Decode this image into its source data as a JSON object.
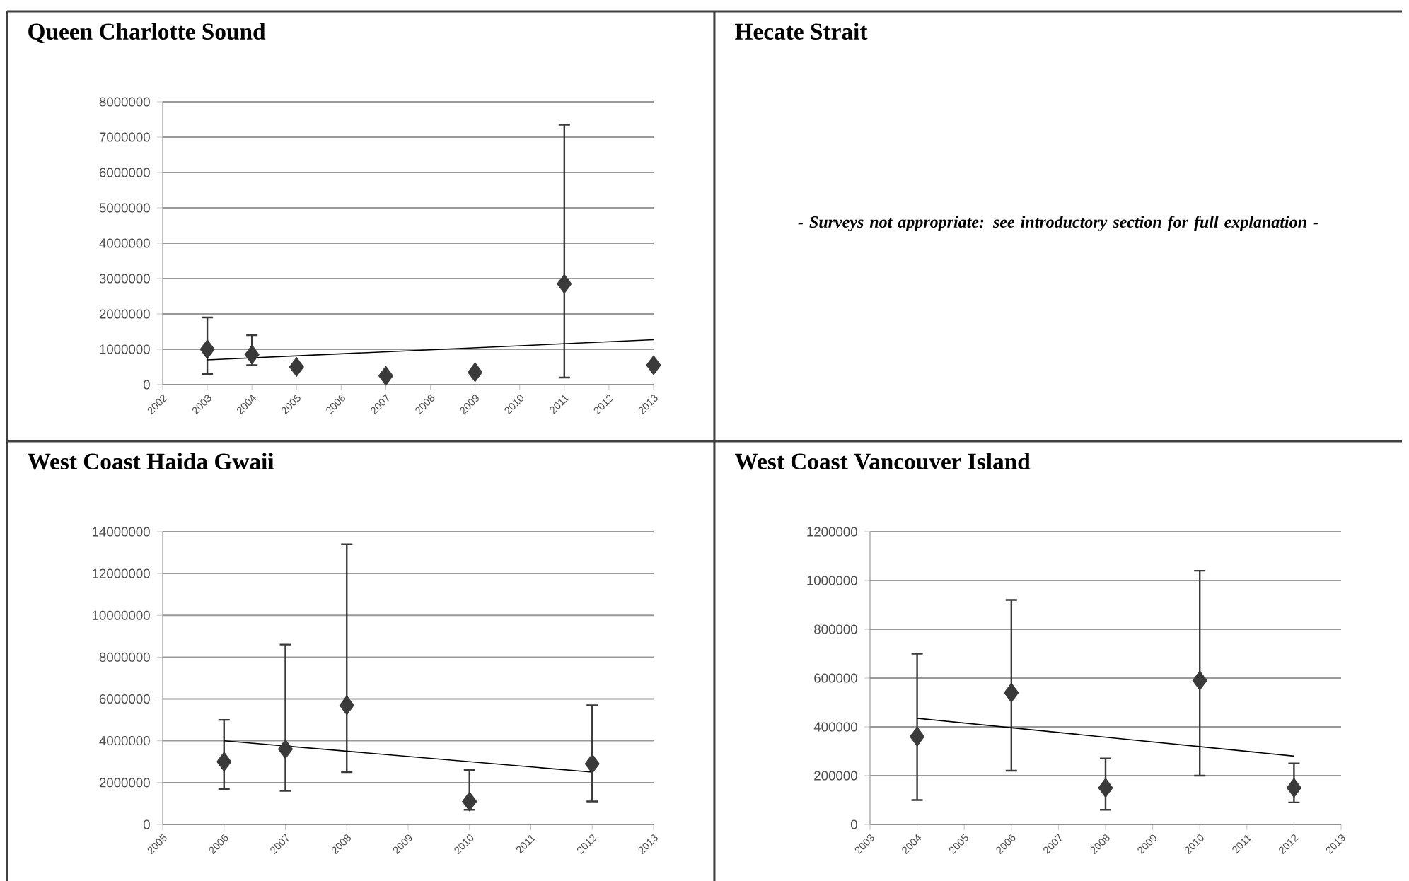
{
  "chart_data": [
    {
      "type": "scatter",
      "title": "Queen Charlotte Sound",
      "marker": "diamond",
      "grid": "y",
      "xlim": [
        2002,
        2013
      ],
      "xticks": [
        2002,
        2003,
        2004,
        2005,
        2006,
        2007,
        2008,
        2009,
        2010,
        2011,
        2012,
        2013
      ],
      "ylim": [
        0,
        8000000
      ],
      "yticks": [
        0,
        1000000,
        2000000,
        3000000,
        4000000,
        5000000,
        6000000,
        7000000,
        8000000
      ],
      "series": [
        {
          "type": "scatter",
          "color": "#3a3a3a",
          "x": [
            2003,
            2004,
            2005,
            2007,
            2009,
            2011,
            2013
          ],
          "values": [
            1000000,
            850000,
            500000,
            250000,
            350000,
            2850000,
            550000
          ],
          "errors": [
            [
              300000,
              1900000
            ],
            [
              550000,
              1400000
            ],
            null,
            null,
            null,
            [
              200000,
              7350000
            ],
            null
          ]
        },
        {
          "type": "line",
          "color": "#000000",
          "marker": "none",
          "x": [
            2003,
            2013
          ],
          "values": [
            700000,
            1270000
          ]
        }
      ]
    },
    {
      "type": "other",
      "title": "Hecate Strait",
      "annotations": [
        "- Surveys not appropriate: see introductory section for full explanation -"
      ]
    },
    {
      "type": "scatter",
      "title": "West Coast Haida Gwaii",
      "marker": "diamond",
      "grid": "y",
      "xlim": [
        2005,
        2013
      ],
      "xticks": [
        2005,
        2006,
        2007,
        2008,
        2009,
        2010,
        2011,
        2012,
        2013
      ],
      "ylim": [
        0,
        14000000
      ],
      "yticks": [
        0,
        2000000,
        4000000,
        6000000,
        8000000,
        10000000,
        12000000,
        14000000
      ],
      "series": [
        {
          "type": "scatter",
          "color": "#3a3a3a",
          "x": [
            2006,
            2007,
            2008,
            2010,
            2012
          ],
          "values": [
            3000000,
            3600000,
            5700000,
            1100000,
            2900000
          ],
          "errors": [
            [
              1700000,
              5000000
            ],
            [
              1600000,
              8600000
            ],
            [
              2500000,
              13400000
            ],
            [
              700000,
              2600000
            ],
            [
              1100000,
              5700000
            ]
          ]
        },
        {
          "type": "line",
          "color": "#000000",
          "marker": "none",
          "x": [
            2006,
            2012
          ],
          "values": [
            4000000,
            2500000
          ]
        }
      ]
    },
    {
      "type": "scatter",
      "title": "West Coast Vancouver Island",
      "marker": "diamond",
      "grid": "y",
      "xlim": [
        2003,
        2013
      ],
      "xticks": [
        2003,
        2004,
        2005,
        2006,
        2007,
        2008,
        2009,
        2010,
        2011,
        2012,
        2013
      ],
      "ylim": [
        0,
        1200000
      ],
      "yticks": [
        0,
        200000,
        400000,
        600000,
        800000,
        1000000,
        1200000
      ],
      "series": [
        {
          "type": "scatter",
          "color": "#3a3a3a",
          "x": [
            2004,
            2006,
            2008,
            2010,
            2012
          ],
          "values": [
            360000,
            540000,
            150000,
            590000,
            150000
          ],
          "errors": [
            [
              100000,
              700000
            ],
            [
              220000,
              920000
            ],
            [
              60000,
              270000
            ],
            [
              200000,
              1040000
            ],
            [
              90000,
              250000
            ]
          ]
        },
        {
          "type": "line",
          "color": "#000000",
          "marker": "none",
          "x": [
            2004,
            2012
          ],
          "values": [
            435000,
            280000
          ]
        }
      ]
    }
  ]
}
